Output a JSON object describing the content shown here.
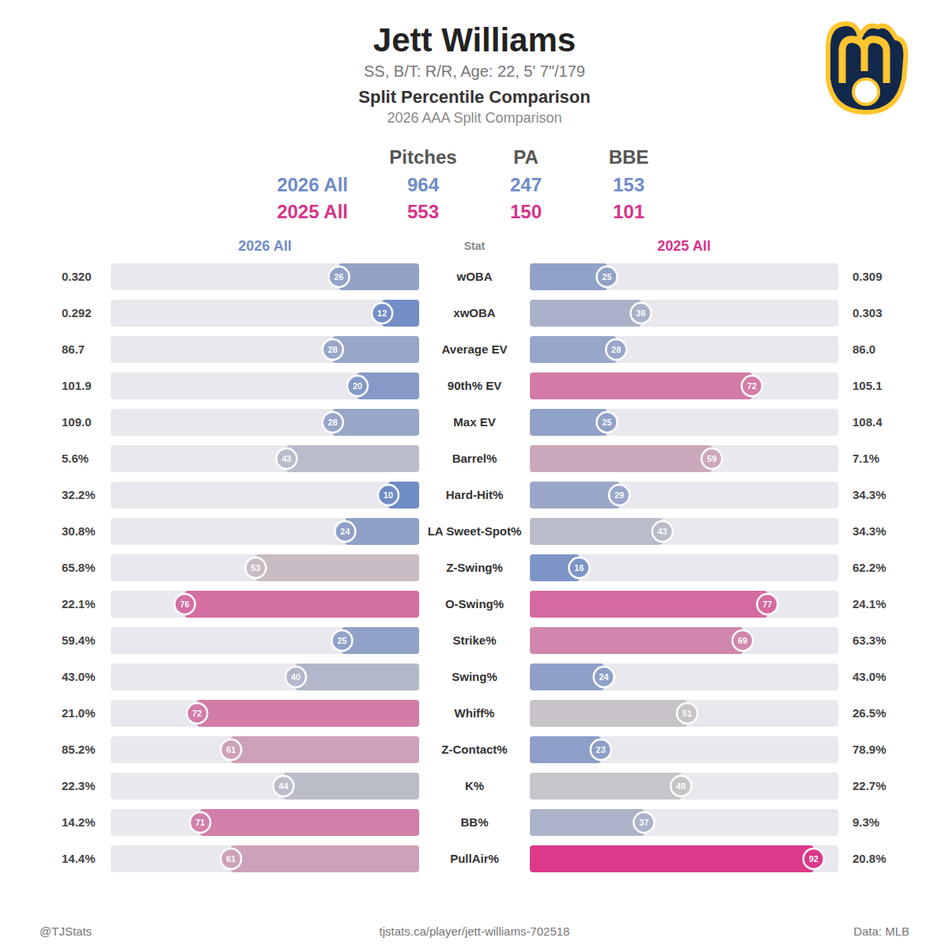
{
  "header": {
    "title": "Jett Williams",
    "subtitle": "SS, B/T: R/R, Age: 22, 5' 7\"/179",
    "heading": "Split Percentile Comparison",
    "subheading": "2026 AAA Split Comparison"
  },
  "summary": {
    "columns": [
      "Pitches",
      "PA",
      "BBE"
    ],
    "rows": [
      {
        "label": "2026 All",
        "color": "#6f8cc8",
        "values": [
          964,
          247,
          153
        ]
      },
      {
        "label": "2025 All",
        "color": "#d6338a",
        "values": [
          553,
          150,
          101
        ]
      }
    ]
  },
  "stat_header": "Stat",
  "chart_data": [
    {
      "type": "bar",
      "orientation": "horizontal",
      "title": "2026 All",
      "categories": [
        "wOBA",
        "xwOBA",
        "Average EV",
        "90th% EV",
        "Max EV",
        "Barrel%",
        "Hard-Hit%",
        "LA Sweet-Spot%",
        "Z-Swing%",
        "O-Swing%",
        "Strike%",
        "Swing%",
        "Whiff%",
        "Z-Contact%",
        "K%",
        "BB%",
        "PullAir%"
      ],
      "values": [
        26,
        12,
        28,
        20,
        28,
        43,
        10,
        24,
        53,
        76,
        25,
        40,
        72,
        61,
        44,
        71,
        61
      ],
      "stat_values": [
        "0.320",
        "0.292",
        "86.7",
        "101.9",
        "109.0",
        "5.6%",
        "32.2%",
        "30.8%",
        "65.8%",
        "22.1%",
        "59.4%",
        "43.0%",
        "21.0%",
        "85.2%",
        "22.3%",
        "14.2%",
        "14.4%"
      ],
      "colors": [
        "#93a3c8",
        "#748ec7",
        "#98a6c8",
        "#869ac8",
        "#98a6c8",
        "#b9bcc9",
        "#708cc7",
        "#8fa0c8",
        "#c9bcc4",
        "#d46fa2",
        "#91a2c8",
        "#b2b7c9",
        "#d37ca8",
        "#cda1b9",
        "#bbbdc9",
        "#d27faa",
        "#cda1b9"
      ],
      "xlim": [
        0,
        100
      ],
      "grid": false,
      "tick_labels": false,
      "data_labels": true
    },
    {
      "type": "bar",
      "orientation": "horizontal",
      "title": "2025 All",
      "categories": [
        "wOBA",
        "xwOBA",
        "Average EV",
        "90th% EV",
        "Max EV",
        "Barrel%",
        "Hard-Hit%",
        "LA Sweet-Spot%",
        "Z-Swing%",
        "O-Swing%",
        "Strike%",
        "Swing%",
        "Whiff%",
        "Z-Contact%",
        "K%",
        "BB%",
        "PullAir%"
      ],
      "values": [
        25,
        36,
        28,
        72,
        25,
        59,
        29,
        43,
        16,
        77,
        69,
        24,
        51,
        23,
        49,
        37,
        92
      ],
      "stat_values": [
        "0.309",
        "0.303",
        "86.0",
        "105.1",
        "108.4",
        "7.1%",
        "34.3%",
        "34.3%",
        "62.2%",
        "24.1%",
        "63.3%",
        "43.0%",
        "26.5%",
        "78.9%",
        "22.7%",
        "9.3%",
        "20.8%"
      ],
      "colors": [
        "#91a2c8",
        "#a9b2c8",
        "#98a6c8",
        "#d37ca8",
        "#91a2c8",
        "#cca8bc",
        "#9aa7c8",
        "#b9bcc9",
        "#7d94c7",
        "#d56ba0",
        "#d186ad",
        "#8fa0c8",
        "#c8c3c8",
        "#8d9fc8",
        "#c6c5ca",
        "#abb3c9",
        "#dc3989"
      ],
      "xlim": [
        0,
        100
      ],
      "grid": false,
      "tick_labels": false,
      "data_labels": true
    }
  ],
  "footer": {
    "left": "@TJStats",
    "center": "tjstats.ca/player/jett-williams-702518",
    "right": "Data: MLB"
  }
}
